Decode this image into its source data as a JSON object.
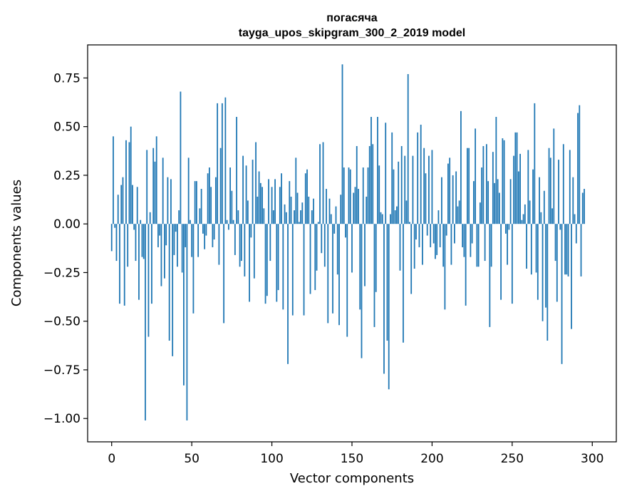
{
  "chart_data": {
    "type": "bar",
    "title": "погасяча",
    "subtitle": "tayga_upos_skipgram_300_2_2019 model",
    "xlabel": "Vector components",
    "ylabel": "Components values",
    "xlim": [
      -15,
      315
    ],
    "ylim": [
      -1.12,
      0.92
    ],
    "x_ticks": [
      0,
      50,
      100,
      150,
      200,
      250,
      300
    ],
    "x_tick_labels": [
      "0",
      "50",
      "100",
      "150",
      "200",
      "250",
      "300"
    ],
    "y_ticks": [
      0.75,
      0.5,
      0.25,
      0.0,
      -0.25,
      -0.5,
      -0.75,
      -1.0
    ],
    "y_tick_labels": [
      "0.75",
      "0.50",
      "0.25",
      "0.00",
      "−0.25",
      "−0.50",
      "−0.75",
      "−1.00"
    ],
    "grid": false,
    "bar_color": "#1f77b4",
    "values": [
      -0.14,
      0.45,
      -0.02,
      -0.19,
      0.15,
      -0.41,
      0.2,
      0.24,
      -0.42,
      0.43,
      -0.22,
      0.42,
      0.5,
      0.2,
      -0.03,
      -0.19,
      0.19,
      -0.39,
      0.02,
      -0.17,
      -0.18,
      -1.01,
      0.38,
      -0.58,
      0.06,
      -0.41,
      0.39,
      0.32,
      0.45,
      -0.12,
      -0.06,
      -0.32,
      0.34,
      -0.28,
      -0.11,
      0.24,
      -0.6,
      0.23,
      -0.68,
      -0.16,
      -0.04,
      -0.22,
      0.07,
      0.68,
      -0.25,
      -0.83,
      -0.12,
      -1.01,
      0.34,
      0.02,
      -0.17,
      -0.46,
      0.22,
      0.22,
      -0.17,
      0.08,
      0.18,
      -0.05,
      -0.13,
      -0.06,
      0.26,
      0.29,
      0.19,
      -0.12,
      -0.08,
      0.24,
      0.62,
      -0.21,
      0.39,
      0.62,
      -0.51,
      0.65,
      0.02,
      -0.03,
      0.29,
      0.17,
      0.02,
      -0.16,
      0.55,
      0.07,
      -0.22,
      -0.19,
      0.35,
      -0.27,
      0.3,
      0.12,
      -0.4,
      -0.07,
      0.33,
      -0.28,
      0.42,
      0.14,
      0.27,
      0.21,
      0.19,
      0.08,
      -0.41,
      -0.37,
      0.23,
      -0.19,
      0.19,
      0.07,
      0.23,
      -0.4,
      -0.34,
      0.19,
      0.26,
      -0.44,
      0.1,
      0.06,
      -0.72,
      0.22,
      0.14,
      -0.47,
      0.07,
      0.34,
      0.16,
      0.01,
      0.07,
      0.11,
      -0.47,
      0.26,
      0.28,
      0.14,
      -0.36,
      0.07,
      0.13,
      -0.34,
      -0.24,
      0.01,
      0.41,
      -0.15,
      0.42,
      -0.22,
      0.18,
      -0.51,
      0.13,
      0.05,
      -0.46,
      -0.05,
      0.09,
      -0.26,
      -0.52,
      0.15,
      0.82,
      0.29,
      -0.07,
      -0.58,
      0.29,
      0.28,
      -0.25,
      0.16,
      0.19,
      0.4,
      0.18,
      -0.44,
      -0.69,
      0.29,
      -0.32,
      0.14,
      0.29,
      0.4,
      0.55,
      0.41,
      -0.53,
      -0.35,
      0.55,
      0.3,
      0.06,
      0.05,
      -0.77,
      0.52,
      -0.6,
      -0.85,
      0.05,
      0.47,
      0.28,
      0.07,
      0.09,
      0.32,
      -0.24,
      0.4,
      -0.61,
      0.35,
      0.12,
      0.77,
      0.01,
      -0.36,
      0.35,
      -0.23,
      -0.08,
      0.47,
      -0.12,
      0.51,
      -0.21,
      0.39,
      0.26,
      -0.06,
      0.35,
      -0.12,
      0.38,
      -0.1,
      -0.18,
      -0.16,
      0.07,
      -0.12,
      0.24,
      -0.22,
      -0.44,
      -0.06,
      0.31,
      0.34,
      -0.21,
      0.25,
      -0.1,
      0.27,
      0.09,
      0.12,
      0.58,
      -0.12,
      -0.17,
      -0.42,
      0.39,
      0.39,
      -0.17,
      -0.1,
      0.22,
      0.49,
      -0.22,
      -0.22,
      0.11,
      0.29,
      0.4,
      -0.19,
      0.41,
      0.22,
      -0.53,
      -0.22,
      0.37,
      0.21,
      0.55,
      0.23,
      0.16,
      -0.39,
      0.44,
      0.43,
      -0.05,
      -0.21,
      -0.03,
      0.23,
      -0.41,
      0.35,
      0.47,
      0.47,
      0.27,
      0.36,
      0.02,
      0.05,
      0.1,
      -0.23,
      0.38,
      0.12,
      -0.26,
      0.28,
      0.62,
      -0.25,
      -0.39,
      0.24,
      0.06,
      -0.5,
      0.17,
      -0.43,
      -0.6,
      0.39,
      0.34,
      0.08,
      0.49,
      -0.19,
      -0.4,
      0.33,
      -0.03,
      -0.72,
      0.41,
      -0.26,
      -0.26,
      -0.27,
      0.38,
      -0.54,
      0.24,
      0.05,
      -0.1,
      0.57,
      0.61,
      -0.27,
      0.16,
      0.18
    ]
  }
}
